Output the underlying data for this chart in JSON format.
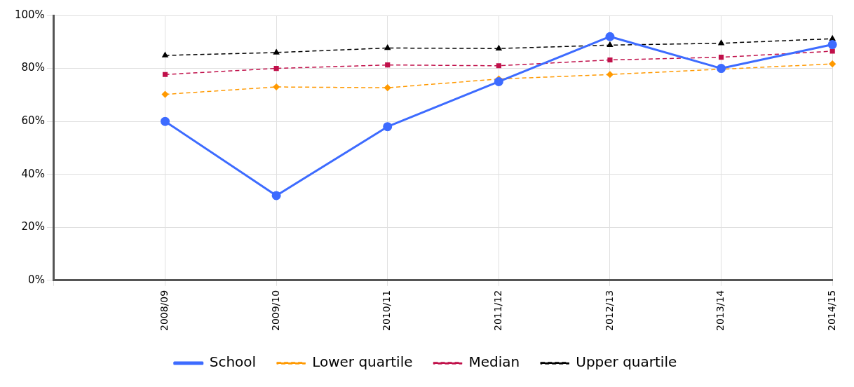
{
  "chart_data": {
    "type": "line",
    "categories": [
      null,
      "2008/09",
      "2009/10",
      "2010/11",
      "2011/12",
      "2012/13",
      "2013/14",
      "2014/15"
    ],
    "series": [
      {
        "name": "School",
        "color": "#3d6bff",
        "values": [
          null,
          60,
          32,
          58,
          75,
          92,
          80,
          89
        ],
        "marker": "circle",
        "line_style": "solid"
      },
      {
        "name": "Lower quartile",
        "color": "#ff9900",
        "values": [
          null,
          70.2,
          73,
          72.7,
          76,
          77.7,
          79.7,
          81.7
        ],
        "marker": "diamond",
        "line_style": "dashed"
      },
      {
        "name": "Median",
        "color": "#c0104a",
        "values": [
          null,
          77.7,
          80,
          81.3,
          81,
          83.2,
          84.2,
          86.5
        ],
        "marker": "square",
        "line_style": "dashed"
      },
      {
        "name": "Upper quartile",
        "color": "#000000",
        "values": [
          null,
          84.9,
          86,
          87.7,
          87.5,
          88.8,
          89.5,
          91.2
        ],
        "marker": "triangle",
        "line_style": "dashed"
      }
    ],
    "ylim": [
      0,
      100
    ],
    "yticks": [
      {
        "value": 0,
        "label": "0%"
      },
      {
        "value": 20,
        "label": "20%"
      },
      {
        "value": 40,
        "label": "40%"
      },
      {
        "value": 60,
        "label": "60%"
      },
      {
        "value": 80,
        "label": "80%"
      },
      {
        "value": 100,
        "label": "100%"
      }
    ],
    "grid": true,
    "legend": "bottom"
  }
}
